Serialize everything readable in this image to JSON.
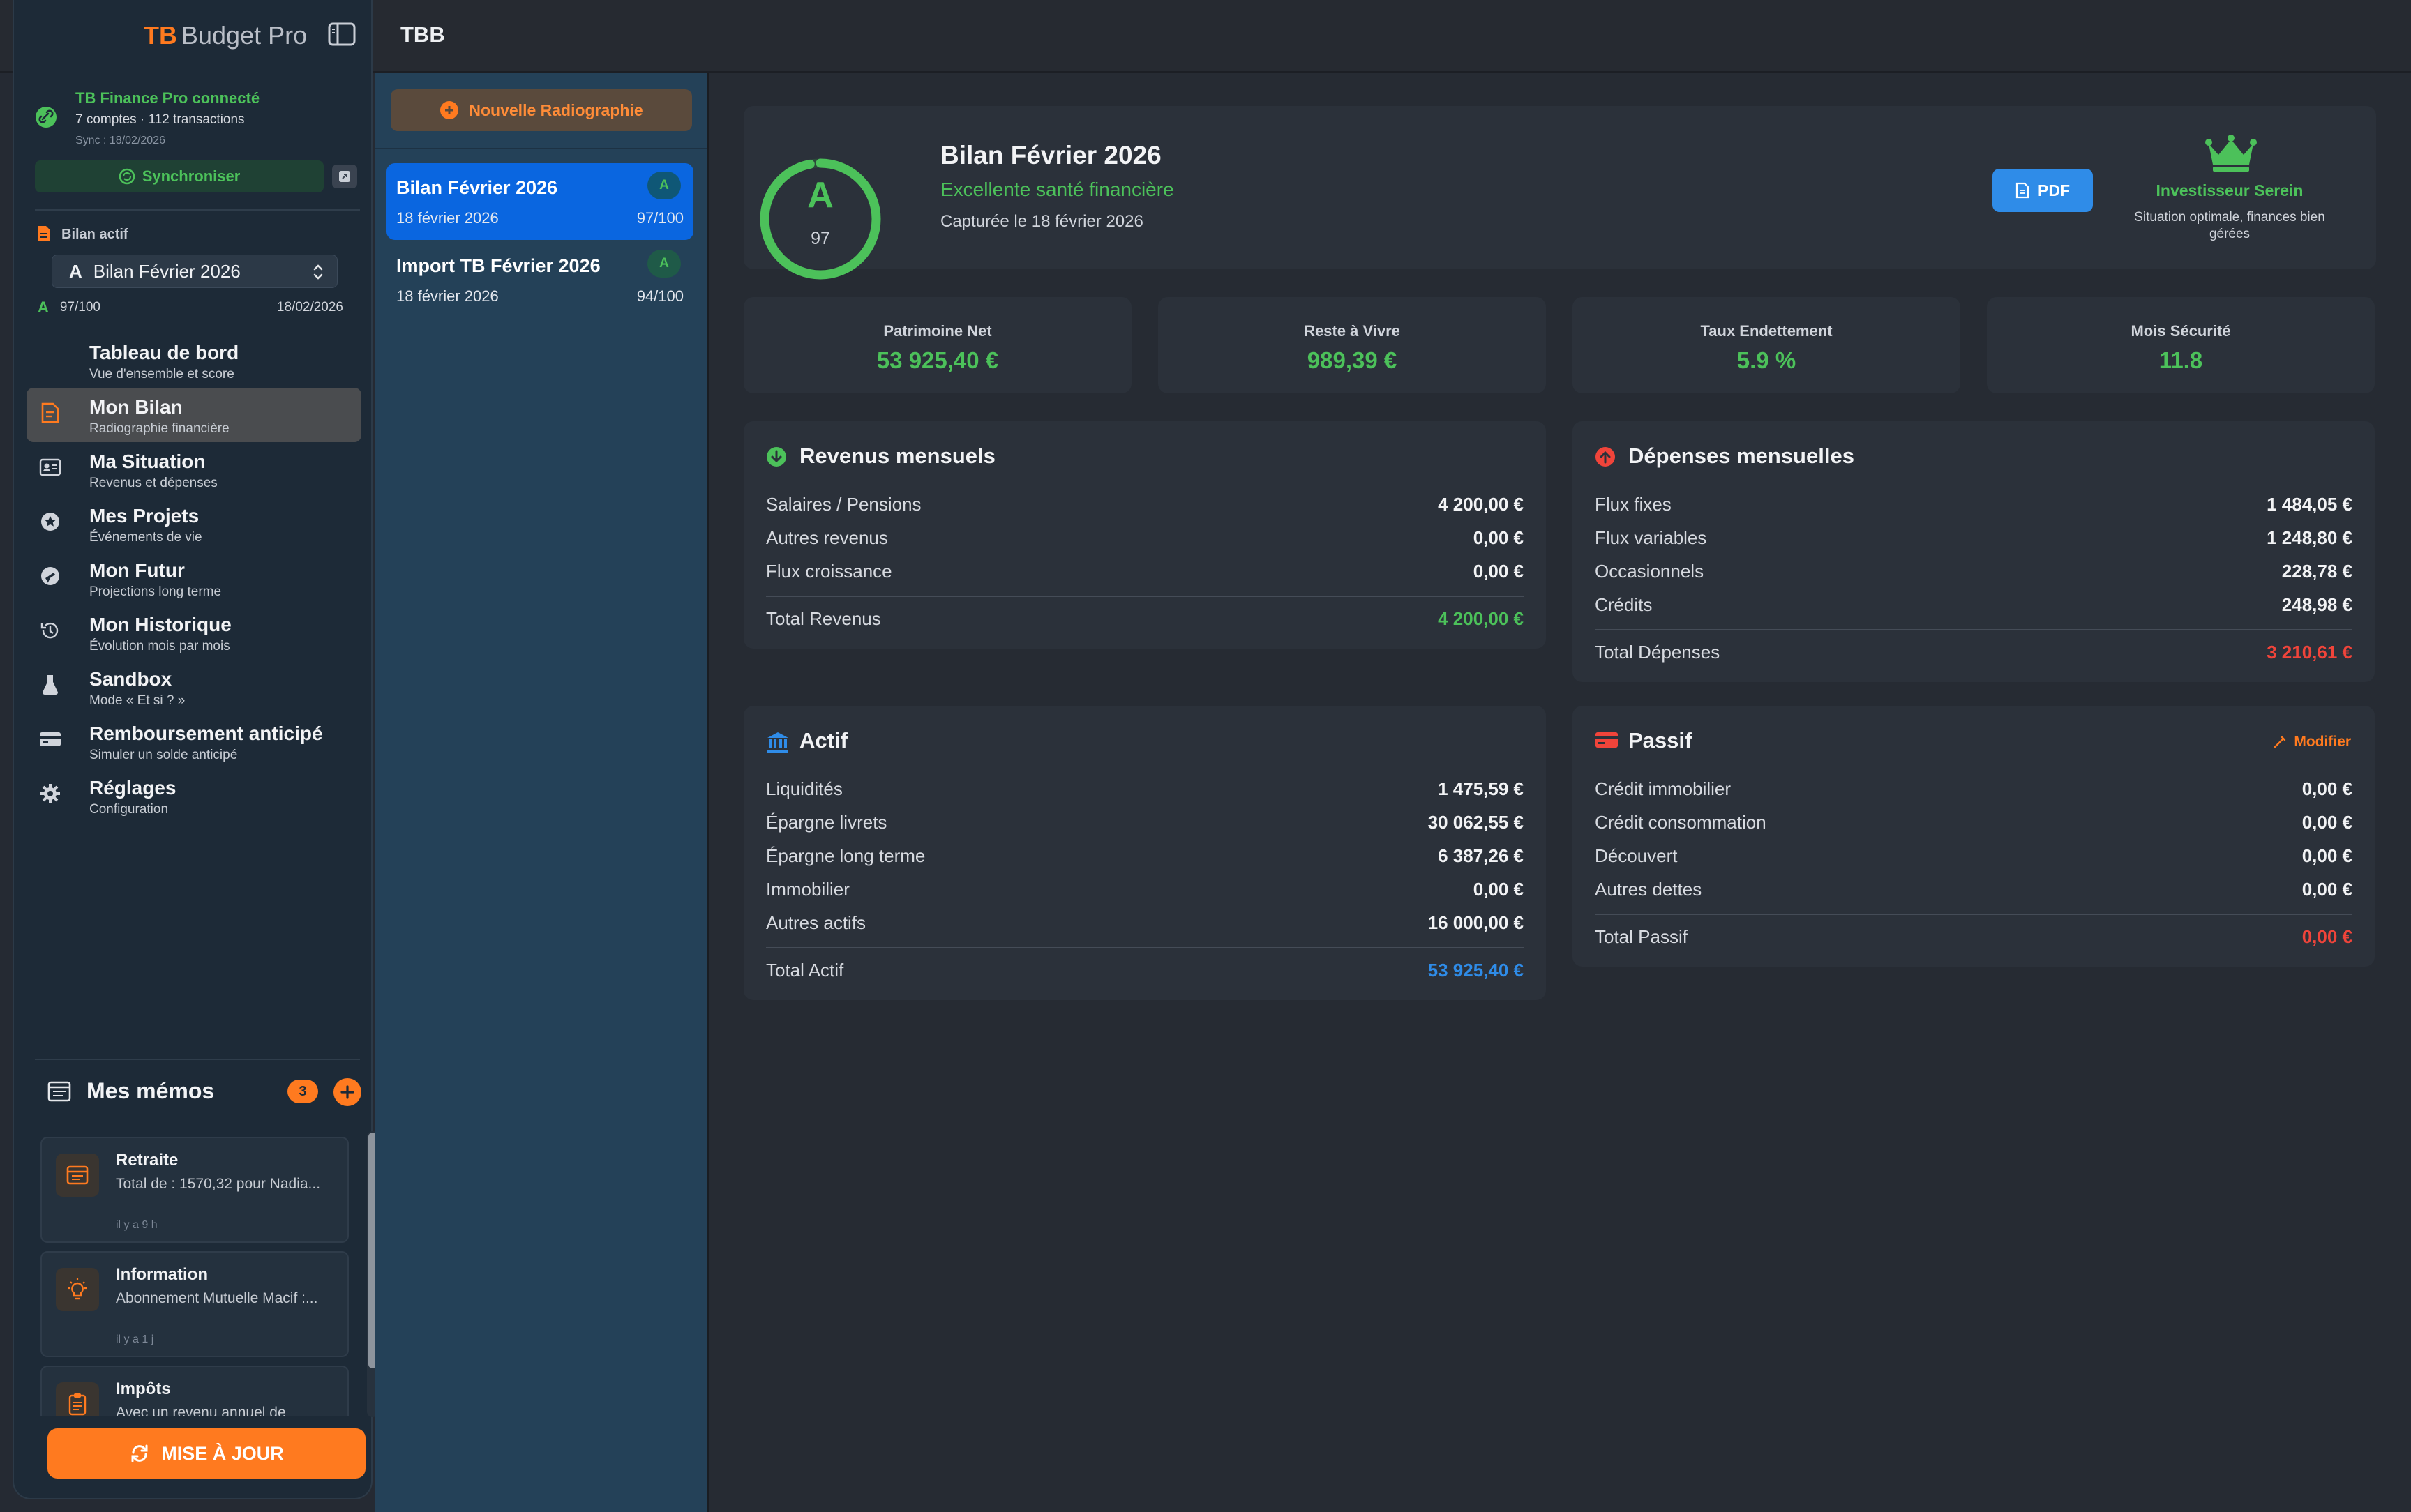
{
  "app": {
    "brand_tb": "TB",
    "brand_rest": "Budget Pro",
    "window_title": "TBB"
  },
  "sidebar": {
    "connection": {
      "title": "TB Finance Pro connecté",
      "subtitle": "7 comptes · 112 transactions",
      "sync_date": "Sync : 18/02/2026",
      "sync_button": "Synchroniser"
    },
    "active_bilan": {
      "label": "Bilan actif",
      "selected_grade": "A",
      "selected_name": "Bilan Février 2026",
      "grade": "A",
      "score": "97/100",
      "date": "18/02/2026"
    },
    "nav": [
      {
        "label": "Tableau de bord",
        "sub": "Vue d'ensemble et score",
        "icon": "dashboard-icon"
      },
      {
        "label": "Mon Bilan",
        "sub": "Radiographie financière",
        "icon": "document-icon"
      },
      {
        "label": "Ma Situation",
        "sub": "Revenus et dépenses",
        "icon": "id-card-icon"
      },
      {
        "label": "Mes Projets",
        "sub": "Événements de vie",
        "icon": "star-badge-icon"
      },
      {
        "label": "Mon Futur",
        "sub": "Projections long terme",
        "icon": "telescope-icon"
      },
      {
        "label": "Mon Historique",
        "sub": "Évolution mois par mois",
        "icon": "history-icon"
      },
      {
        "label": "Sandbox",
        "sub": "Mode « Et si ? »",
        "icon": "flask-icon"
      },
      {
        "label": "Remboursement anticipé",
        "sub": "Simuler un solde anticipé",
        "icon": "credit-card-icon"
      },
      {
        "label": "Réglages",
        "sub": "Configuration",
        "icon": "gear-icon"
      }
    ],
    "memos": {
      "title": "Mes mémos",
      "count": "3",
      "items": [
        {
          "title": "Retraite",
          "body": "Total de : 1570,32 pour Nadia...",
          "time": "il y a 9 h",
          "icon": "notes-icon"
        },
        {
          "title": "Information",
          "body": "Abonnement Mutuelle Macif :...",
          "time": "il y a 1 j",
          "icon": "lightbulb-icon"
        },
        {
          "title": "Impôts",
          "body": "Avec un revenu annuel de",
          "time": "",
          "icon": "clipboard-icon"
        }
      ]
    },
    "update_button": "MISE À JOUR"
  },
  "list": {
    "new_button": "Nouvelle Radiographie",
    "items": [
      {
        "title": "Bilan Février 2026",
        "date": "18 février 2026",
        "score": "97/100",
        "grade": "A"
      },
      {
        "title": "Import TB Février 2026",
        "date": "18 février 2026",
        "score": "94/100",
        "grade": "A"
      }
    ]
  },
  "header": {
    "grade": "A",
    "score": "97",
    "score_fraction": 0.97,
    "title": "Bilan Février 2026",
    "subtitle": "Excellente santé financière",
    "captured": "Capturée le 18 février 2026",
    "pdf_button": "PDF",
    "badge_title": "Investisseur Serein",
    "badge_desc": "Situation optimale, finances bien gérées"
  },
  "kpis": [
    {
      "label": "Patrimoine Net",
      "value": "53 925,40 €"
    },
    {
      "label": "Reste à Vivre",
      "value": "989,39 €"
    },
    {
      "label": "Taux Endettement",
      "value": "5.9 %"
    },
    {
      "label": "Mois Sécurité",
      "value": "11.8"
    }
  ],
  "revenus": {
    "title": "Revenus mensuels",
    "rows": [
      {
        "label": "Salaires / Pensions",
        "value": "4 200,00 €"
      },
      {
        "label": "Autres revenus",
        "value": "0,00 €"
      },
      {
        "label": "Flux croissance",
        "value": "0,00 €"
      }
    ],
    "total_label": "Total Revenus",
    "total_value": "4 200,00 €"
  },
  "depenses": {
    "title": "Dépenses mensuelles",
    "rows": [
      {
        "label": "Flux fixes",
        "value": "1 484,05 €"
      },
      {
        "label": "Flux variables",
        "value": "1 248,80 €"
      },
      {
        "label": "Occasionnels",
        "value": "228,78 €"
      },
      {
        "label": "Crédits",
        "value": "248,98 €"
      }
    ],
    "total_label": "Total Dépenses",
    "total_value": "3 210,61 €"
  },
  "actif": {
    "title": "Actif",
    "rows": [
      {
        "label": "Liquidités",
        "value": "1 475,59 €"
      },
      {
        "label": "Épargne livrets",
        "value": "30 062,55 €"
      },
      {
        "label": "Épargne long terme",
        "value": "6 387,26 €"
      },
      {
        "label": "Immobilier",
        "value": "0,00 €"
      },
      {
        "label": "Autres actifs",
        "value": "16 000,00 €"
      }
    ],
    "total_label": "Total Actif",
    "total_value": "53 925,40 €"
  },
  "passif": {
    "title": "Passif",
    "action": "Modifier",
    "rows": [
      {
        "label": "Crédit immobilier",
        "value": "0,00 €"
      },
      {
        "label": "Crédit consommation",
        "value": "0,00 €"
      },
      {
        "label": "Découvert",
        "value": "0,00 €"
      },
      {
        "label": "Autres dettes",
        "value": "0,00 €"
      }
    ],
    "total_label": "Total Passif",
    "total_value": "0,00 €"
  },
  "colors": {
    "accent": "#ff7a1f",
    "positive": "#4cc15a",
    "negative": "#f0443a",
    "info": "#2f8ce8"
  }
}
